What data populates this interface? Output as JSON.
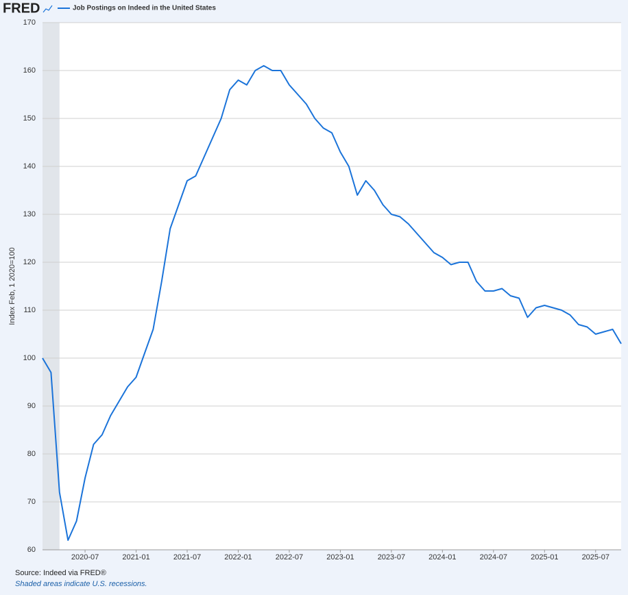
{
  "chart_data": {
    "type": "line",
    "logo": "FRED",
    "title": "Job Postings on Indeed in the United States",
    "y_label": "Index Feb, 1 2020=100",
    "source": "Source: Indeed via FRED®",
    "note": "Shaded areas indicate U.S. recessions.",
    "x": [
      "2020-02",
      "2020-03",
      "2020-04",
      "2020-05",
      "2020-06",
      "2020-07",
      "2020-08",
      "2020-09",
      "2020-10",
      "2020-11",
      "2020-12",
      "2021-01",
      "2021-02",
      "2021-03",
      "2021-04",
      "2021-05",
      "2021-06",
      "2021-07",
      "2021-08",
      "2021-09",
      "2021-10",
      "2021-11",
      "2021-12",
      "2022-01",
      "2022-02",
      "2022-03",
      "2022-04",
      "2022-05",
      "2022-06",
      "2022-07",
      "2022-08",
      "2022-09",
      "2022-10",
      "2022-11",
      "2022-12",
      "2023-01",
      "2023-02",
      "2023-03",
      "2023-04",
      "2023-05",
      "2023-06",
      "2023-07",
      "2023-08",
      "2023-09",
      "2023-10",
      "2023-11",
      "2023-12",
      "2024-01",
      "2024-02",
      "2024-03",
      "2024-04",
      "2024-05",
      "2024-06",
      "2024-07",
      "2024-08",
      "2024-09",
      "2024-10",
      "2024-11",
      "2024-12",
      "2025-01",
      "2025-02",
      "2025-03",
      "2025-04",
      "2025-05",
      "2025-06",
      "2025-07",
      "2025-08",
      "2025-09",
      "2025-10"
    ],
    "series": [
      {
        "name": "Job Postings on Indeed in the United States",
        "color": "#1a73d9",
        "values": [
          100,
          97,
          72,
          62,
          66,
          75,
          82,
          84,
          88,
          91,
          94,
          96,
          101,
          106,
          116,
          127,
          132,
          137,
          138,
          142,
          146,
          150,
          156,
          158,
          157,
          160,
          161,
          160,
          160,
          157,
          155,
          153,
          150,
          148,
          147,
          143,
          140,
          134,
          137,
          135,
          132,
          130,
          129.5,
          128,
          126,
          124,
          122,
          121,
          119.5,
          120,
          120,
          116,
          114,
          114,
          114.5,
          113,
          112.5,
          108.5,
          110.5,
          111,
          110.5,
          110,
          109,
          107,
          106.5,
          105,
          105.5,
          106,
          103
        ]
      }
    ],
    "xlim": [
      "2020-02",
      "2025-10"
    ],
    "xticks": [
      "2020-07",
      "2021-01",
      "2021-07",
      "2022-01",
      "2022-07",
      "2023-01",
      "2023-07",
      "2024-01",
      "2024-07",
      "2025-01",
      "2025-07"
    ],
    "ylim": [
      60,
      170
    ],
    "yticks": [
      60,
      70,
      80,
      90,
      100,
      110,
      120,
      130,
      140,
      150,
      160,
      170
    ],
    "grid": true,
    "recessions": [
      [
        "2020-02",
        "2020-04"
      ]
    ],
    "recession_color": "#e1e5ea",
    "background": "#eef3fb"
  }
}
